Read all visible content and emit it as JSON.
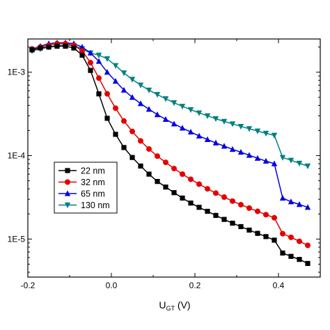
{
  "chart_data": {
    "type": "line",
    "xlabel": {
      "main": "U",
      "sub": "GT",
      "unit": " (V)"
    },
    "ylabel": "",
    "xlim": [
      -0.2,
      0.5
    ],
    "ylim": [
      3.5e-06,
      0.0025
    ],
    "yscale": "log",
    "grid": false,
    "legend_position": "center-left",
    "x_ticks": [
      {
        "value": -0.2,
        "label": "-0.2"
      },
      {
        "value": 0.0,
        "label": "0.0"
      },
      {
        "value": 0.2,
        "label": "0.2"
      },
      {
        "value": 0.4,
        "label": "0.4"
      }
    ],
    "y_ticks": [
      {
        "value": 0.001,
        "label": "1E-3"
      },
      {
        "value": 0.0001,
        "label": "1E-4"
      },
      {
        "value": 1e-05,
        "label": "1E-5"
      }
    ],
    "x": [
      -0.19,
      -0.17,
      -0.15,
      -0.13,
      -0.11,
      -0.09,
      -0.07,
      -0.05,
      -0.03,
      -0.01,
      0.01,
      0.03,
      0.05,
      0.07,
      0.09,
      0.11,
      0.13,
      0.15,
      0.17,
      0.19,
      0.21,
      0.23,
      0.25,
      0.27,
      0.29,
      0.31,
      0.33,
      0.35,
      0.37,
      0.39,
      0.41,
      0.43,
      0.45,
      0.47
    ],
    "series": [
      {
        "name": "22 nm",
        "color": "#000000",
        "marker": "square",
        "values": [
          0.00185,
          0.00195,
          0.002,
          0.00205,
          0.00205,
          0.00195,
          0.0016,
          0.00105,
          0.00055,
          0.00028,
          0.00018,
          0.000125,
          9.5e-05,
          7.5e-05,
          6e-05,
          4.9e-05,
          4.2e-05,
          3.6e-05,
          3.1e-05,
          2.7e-05,
          2.4e-05,
          2.15e-05,
          1.92e-05,
          1.72e-05,
          1.55e-05,
          1.41e-05,
          1.28e-05,
          1.17e-05,
          1.07e-05,
          9.7e-06,
          6.8e-06,
          6.2e-06,
          5.7e-06,
          5.1e-06
        ]
      },
      {
        "name": "32 nm",
        "color": "#e50000",
        "marker": "circle",
        "values": [
          0.0019,
          0.002,
          0.0021,
          0.0022,
          0.0022,
          0.0021,
          0.0018,
          0.0013,
          0.00085,
          0.00055,
          0.00037,
          0.00026,
          0.000195,
          0.00015,
          0.00012,
          9.85e-05,
          8.3e-05,
          7e-05,
          6e-05,
          5.2e-05,
          4.55e-05,
          4e-05,
          3.55e-05,
          3.18e-05,
          2.85e-05,
          2.58e-05,
          2.35e-05,
          2.15e-05,
          1.96e-05,
          1.8e-05,
          1.16e-05,
          1.05e-05,
          9.4e-06,
          8.4e-06
        ]
      },
      {
        "name": "65 nm",
        "color": "#0000e5",
        "marker": "triangle-up",
        "values": [
          0.0019,
          0.00205,
          0.0022,
          0.00225,
          0.00225,
          0.0022,
          0.002,
          0.0017,
          0.00135,
          0.001,
          0.00078,
          0.00061,
          0.0005,
          0.00042,
          0.00036,
          0.00031,
          0.000272,
          0.00024,
          0.000214,
          0.000192,
          0.000172,
          0.000156,
          0.000142,
          0.00013,
          0.000119,
          0.00011,
          0.000101,
          9.3e-05,
          8.6e-05,
          8e-05,
          3.1e-05,
          2.8e-05,
          2.6e-05,
          2.4e-05
        ]
      },
      {
        "name": "130 nm",
        "color": "#008080",
        "marker": "triangle-down",
        "values": [
          0.0018,
          0.0019,
          0.002,
          0.0021,
          0.0021,
          0.0021,
          0.0019,
          0.0017,
          0.0016,
          0.00145,
          0.0012,
          0.00098,
          0.00082,
          0.0007,
          0.00061,
          0.00054,
          0.00048,
          0.00043,
          0.00039,
          0.000355,
          0.000325,
          0.0003,
          0.000277,
          0.000257,
          0.00024,
          0.000224,
          0.00021,
          0.000197,
          0.000185,
          0.000175,
          9.5e-05,
          8.8e-05,
          8.1e-05,
          7.5e-05
        ]
      }
    ]
  }
}
